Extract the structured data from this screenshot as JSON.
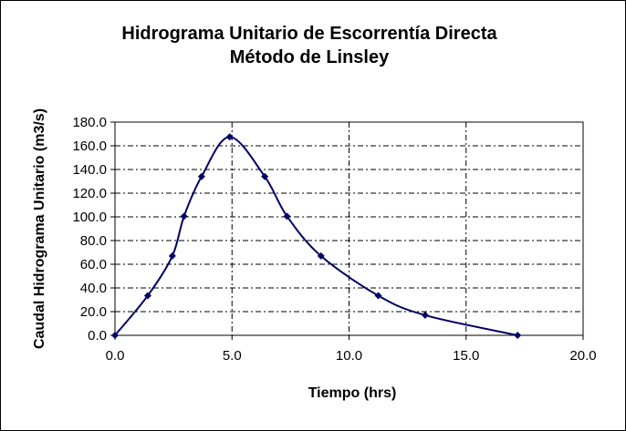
{
  "chart_data": {
    "type": "line",
    "title_line1": "Hidrograma Unitario de Escorrentía Directa",
    "title_line2": "Método de Linsley",
    "xlabel": "Tiempo (hrs)",
    "ylabel": "Caudal Hidrograma Unitario (m3/s)",
    "xlim": [
      0,
      20
    ],
    "ylim": [
      0,
      180
    ],
    "xticks": [
      "0.0",
      "5.0",
      "10.0",
      "15.0",
      "20.0"
    ],
    "yticks": [
      "0.0",
      "20.0",
      "40.0",
      "60.0",
      "80.0",
      "100.0",
      "120.0",
      "140.0",
      "160.0",
      "180.0"
    ],
    "grid": true,
    "legend": "none",
    "series": [
      {
        "color": "#000066",
        "x": [
          0.0,
          1.4,
          2.45,
          2.95,
          3.7,
          4.9,
          6.4,
          7.35,
          8.8,
          11.25,
          13.25,
          17.2
        ],
        "y": [
          0.0,
          33.5,
          67.0,
          100.5,
          134.0,
          167.5,
          134.0,
          100.5,
          67.0,
          33.5,
          17.0,
          0.0
        ]
      }
    ]
  }
}
